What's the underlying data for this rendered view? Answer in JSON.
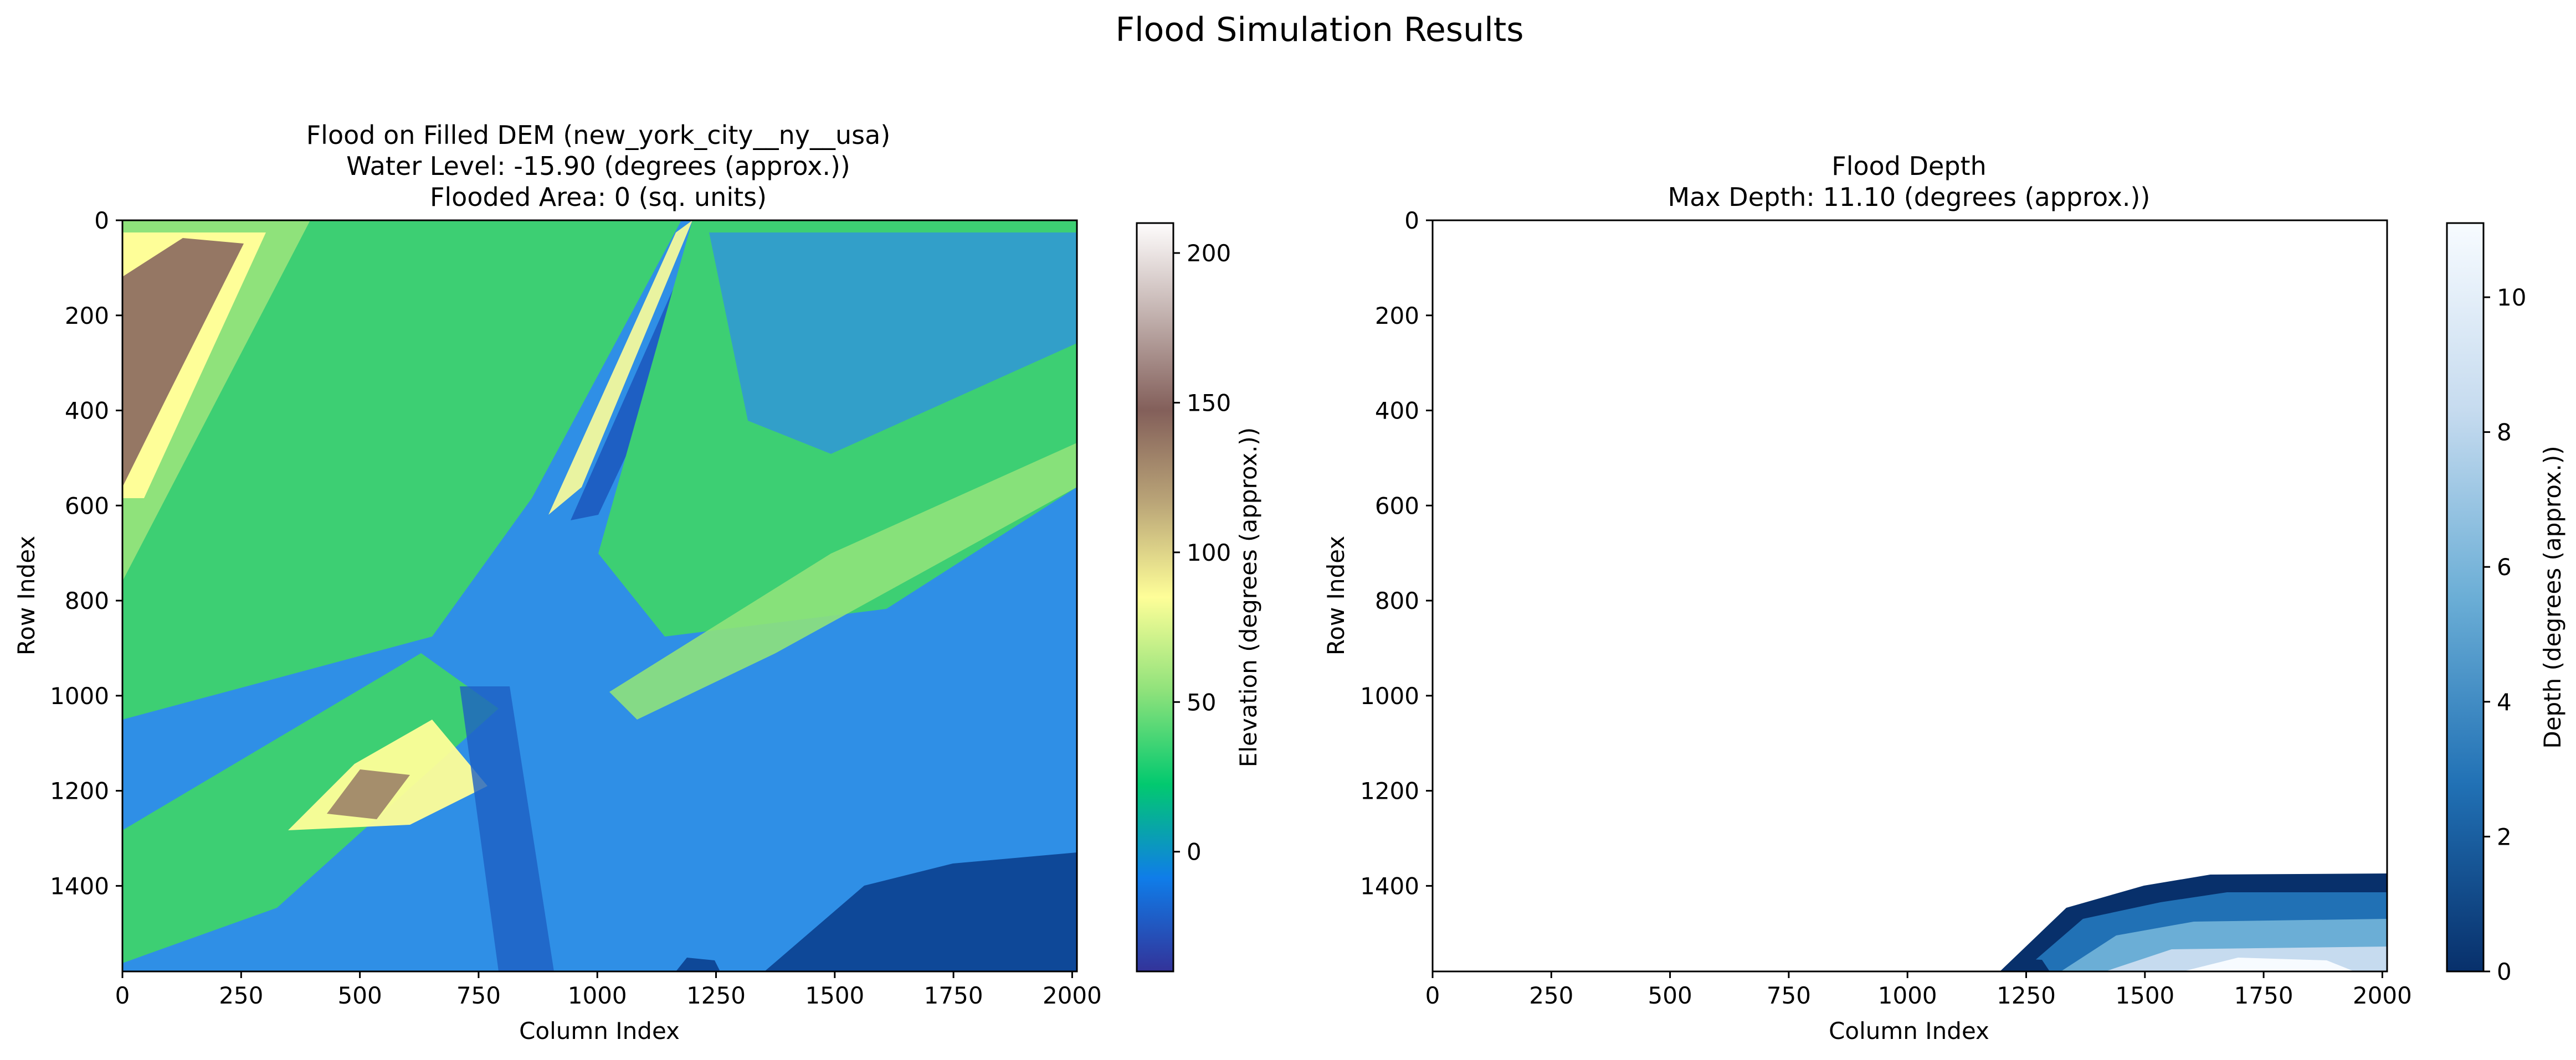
{
  "figure": {
    "suptitle": "Flood Simulation Results"
  },
  "colors": {
    "terrain": [
      "#333399",
      "#0f7de9",
      "#02c96f",
      "#8fe27b",
      "#fefe98",
      "#bba678",
      "#835f5a",
      "#c1b0ad",
      "#fefcfc"
    ],
    "blues_r": [
      "#08306b",
      "#2171b5",
      "#6baed6",
      "#c6dbef",
      "#f7fbff"
    ],
    "deep_water": "#0e4898",
    "channel": "#1e5fc3",
    "lowland": "#2f8fe6",
    "land": "#3dcf73"
  },
  "chart_data": [
    {
      "type": "heatmap",
      "title": "Flood on Filled DEM (new_york_city__ny__usa)\nWater Level: -15.90 (degrees (approx.))\nFlooded Area: 0 (sq. units)",
      "title_lines": [
        "Flood on Filled DEM (new_york_city__ny__usa)",
        "Water Level: -15.90 (degrees (approx.))",
        "Flooded Area: 0 (sq. units)"
      ],
      "xlabel": "Column Index",
      "ylabel": "Row Index",
      "xlim": [
        0,
        2010
      ],
      "ylim": [
        1580,
        0
      ],
      "xticks": [
        0,
        250,
        500,
        750,
        1000,
        1250,
        1500,
        1750,
        2000
      ],
      "yticks": [
        0,
        200,
        400,
        600,
        800,
        1000,
        1200,
        1400
      ],
      "colormap": "terrain",
      "colorbar": {
        "label": "Elevation (degrees (approx.))",
        "range": [
          -40,
          210
        ],
        "ticks": [
          0,
          50,
          100,
          150,
          200
        ]
      }
    },
    {
      "type": "heatmap",
      "title": "Flood Depth\nMax Depth: 11.10 (degrees (approx.))",
      "title_lines": [
        "Flood Depth",
        "Max Depth: 11.10 (degrees (approx.))"
      ],
      "xlabel": "Column Index",
      "ylabel": "Row Index",
      "xlim": [
        0,
        2010
      ],
      "ylim": [
        1580,
        0
      ],
      "xticks": [
        0,
        250,
        500,
        750,
        1000,
        1250,
        1500,
        1750,
        2000
      ],
      "yticks": [
        0,
        200,
        400,
        600,
        800,
        1000,
        1200,
        1400
      ],
      "colormap": "Blues_r",
      "max_depth": 11.1,
      "colorbar": {
        "label": "Depth (degrees (approx.))",
        "range": [
          0,
          11.1
        ],
        "ticks": [
          0,
          2,
          4,
          6,
          8,
          10
        ]
      }
    }
  ]
}
